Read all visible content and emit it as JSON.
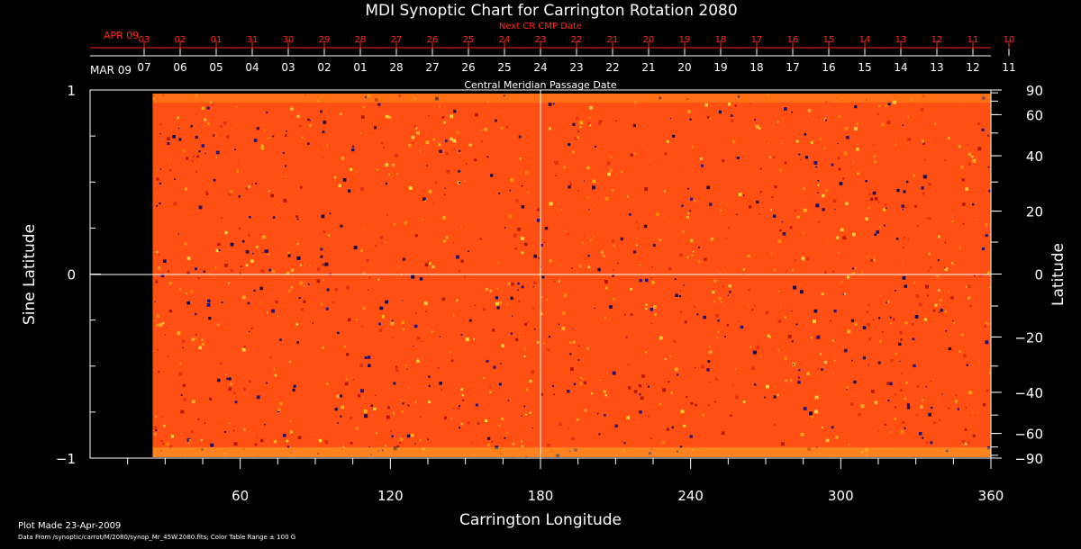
{
  "chart_data": {
    "type": "heatmap",
    "title": "MDI Synoptic Chart for Carrington Rotation 2080",
    "xlabel": "Carrington Longitude",
    "ylabel_left": "Sine Latitude",
    "ylabel_right": "Latitude",
    "xlim": [
      0,
      360
    ],
    "ylim": [
      -1,
      1
    ],
    "x_ticks": [
      60,
      120,
      180,
      240,
      300,
      360
    ],
    "y_ticks_left": [
      {
        "v": -1,
        "label": "−1"
      },
      {
        "v": 0,
        "label": "0"
      },
      {
        "v": 1,
        "label": "1"
      }
    ],
    "y_ticks_right": [
      {
        "v": 90,
        "label": "90"
      },
      {
        "v": 60,
        "label": "60"
      },
      {
        "v": 40,
        "label": "40"
      },
      {
        "v": 20,
        "label": "20"
      },
      {
        "v": 0,
        "label": "0"
      },
      {
        "v": -20,
        "label": "−20"
      },
      {
        "v": -40,
        "label": "−40"
      },
      {
        "v": -60,
        "label": "−60"
      },
      {
        "v": -90,
        "label": "−90"
      }
    ],
    "data_start_longitude": 25,
    "central_meridian_longitude": 180,
    "cmp_axis_label": "Central Meridian Passage Date",
    "cmp_month_label": "MAR 09",
    "cmp_dates": [
      "07",
      "06",
      "05",
      "04",
      "03",
      "02",
      "01",
      "28",
      "27",
      "26",
      "25",
      "24",
      "23",
      "22",
      "21",
      "20",
      "19",
      "18",
      "17",
      "16",
      "15",
      "14",
      "13",
      "12",
      "11"
    ],
    "next_cr_label": "Next CR CMP Date",
    "next_cr_month_label": "APR 09",
    "next_cr_dates": [
      "03",
      "02",
      "01",
      "31",
      "30",
      "29",
      "28",
      "27",
      "26",
      "25",
      "24",
      "23",
      "22",
      "21",
      "20",
      "19",
      "18",
      "17",
      "16",
      "15",
      "14",
      "13",
      "12",
      "11",
      "10"
    ],
    "color_table_range_gauss": 100,
    "colors": {
      "background": "#000000",
      "field_base": "#ff4f12",
      "field_hot": "#ffd23c",
      "field_cold": "#1a0c6a",
      "axis": "#ffffff",
      "next_cr": "#ff2a1a"
    }
  },
  "footer": {
    "plot_made": "Plot Made 23-Apr-2009",
    "data_from": "Data From /synoptic/carrot/M/2080/synop_Mr_45W.2080.fits; Color Table Range ± 100 G"
  }
}
